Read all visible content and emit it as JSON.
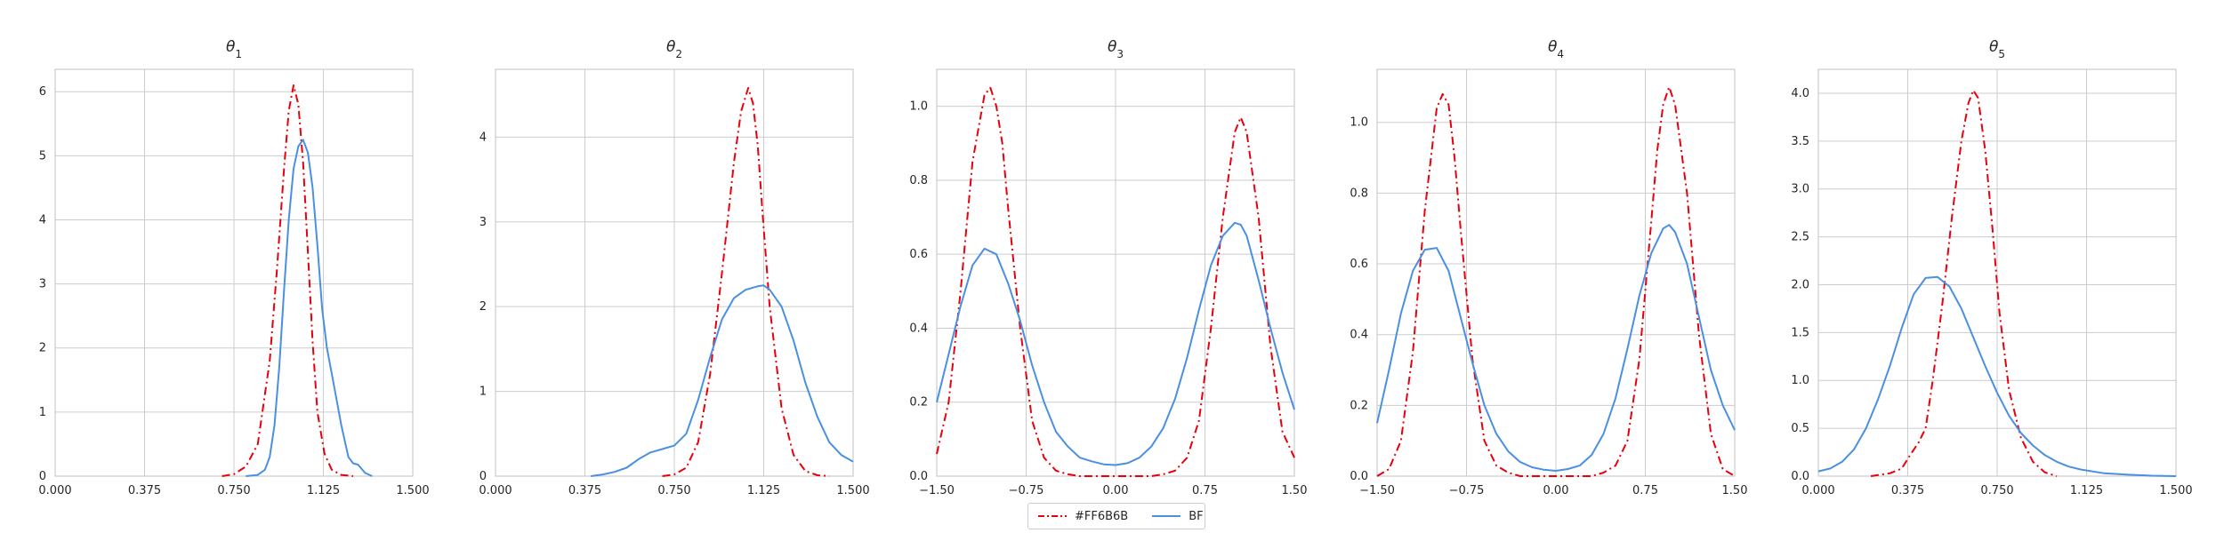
{
  "chart_data": [
    {
      "type": "line",
      "title": "θ1",
      "xlim": [
        0,
        1.5
      ],
      "ylim": [
        0,
        6.35
      ],
      "xticks": [
        "0.000",
        "0.375",
        "0.750",
        "1.125",
        "1.500"
      ],
      "yticks": [
        "0",
        "1",
        "2",
        "3",
        "4",
        "5",
        "6"
      ],
      "grid": true,
      "series": [
        {
          "name": "#FF6B6B",
          "x": [
            0.7,
            0.75,
            0.8,
            0.85,
            0.9,
            0.93,
            0.96,
            0.98,
            1.0,
            1.02,
            1.04,
            1.06,
            1.08,
            1.1,
            1.13,
            1.16,
            1.2,
            1.25
          ],
          "y": [
            0,
            0.03,
            0.15,
            0.5,
            1.8,
            3.2,
            4.8,
            5.7,
            6.1,
            5.8,
            4.9,
            3.5,
            2.1,
            1.0,
            0.35,
            0.1,
            0.02,
            0
          ]
        },
        {
          "name": "BF",
          "x": [
            0.8,
            0.85,
            0.88,
            0.9,
            0.92,
            0.94,
            0.96,
            0.98,
            1.0,
            1.02,
            1.04,
            1.06,
            1.08,
            1.1,
            1.12,
            1.14,
            1.17,
            1.2,
            1.23,
            1.25,
            1.27,
            1.3,
            1.33
          ],
          "y": [
            0,
            0.02,
            0.1,
            0.3,
            0.8,
            1.7,
            2.9,
            4.0,
            4.8,
            5.15,
            5.25,
            5.05,
            4.5,
            3.6,
            2.6,
            2.0,
            1.4,
            0.8,
            0.3,
            0.2,
            0.18,
            0.05,
            0
          ]
        }
      ]
    },
    {
      "type": "line",
      "title": "θ2",
      "xlim": [
        0,
        1.5
      ],
      "ylim": [
        0,
        4.8
      ],
      "xticks": [
        "0.000",
        "0.375",
        "0.750",
        "1.125",
        "1.500"
      ],
      "yticks": [
        "0",
        "1",
        "2",
        "3",
        "4"
      ],
      "grid": true,
      "series": [
        {
          "name": "#FF6B6B",
          "x": [
            0.7,
            0.75,
            0.8,
            0.85,
            0.9,
            0.95,
            1.0,
            1.03,
            1.06,
            1.08,
            1.1,
            1.12,
            1.15,
            1.2,
            1.25,
            1.3,
            1.35,
            1.4
          ],
          "y": [
            0,
            0.02,
            0.1,
            0.4,
            1.2,
            2.4,
            3.7,
            4.3,
            4.58,
            4.4,
            3.9,
            3.1,
            2.0,
            0.8,
            0.25,
            0.06,
            0.01,
            0
          ]
        },
        {
          "name": "BF",
          "x": [
            0.4,
            0.45,
            0.5,
            0.55,
            0.6,
            0.65,
            0.7,
            0.75,
            0.8,
            0.85,
            0.9,
            0.95,
            1.0,
            1.05,
            1.1,
            1.125,
            1.15,
            1.2,
            1.25,
            1.3,
            1.35,
            1.4,
            1.45,
            1.5
          ],
          "y": [
            0,
            0.02,
            0.05,
            0.1,
            0.2,
            0.28,
            0.32,
            0.36,
            0.5,
            0.9,
            1.4,
            1.85,
            2.1,
            2.2,
            2.24,
            2.25,
            2.2,
            2.0,
            1.6,
            1.1,
            0.7,
            0.4,
            0.25,
            0.17
          ]
        }
      ]
    },
    {
      "type": "line",
      "title": "θ3",
      "xlim": [
        -1.5,
        1.5
      ],
      "ylim": [
        0,
        1.1
      ],
      "xticks": [
        "−1.50",
        "−0.75",
        "0.00",
        "0.75",
        "1.50"
      ],
      "yticks": [
        "0.0",
        "0.2",
        "0.4",
        "0.6",
        "0.8",
        "1.0"
      ],
      "grid": true,
      "series": [
        {
          "name": "#FF6B6B",
          "x": [
            -1.5,
            -1.4,
            -1.3,
            -1.2,
            -1.1,
            -1.05,
            -1.0,
            -0.95,
            -0.9,
            -0.8,
            -0.7,
            -0.6,
            -0.5,
            -0.4,
            -0.3,
            0.0,
            0.3,
            0.4,
            0.5,
            0.6,
            0.7,
            0.8,
            0.9,
            1.0,
            1.05,
            1.1,
            1.2,
            1.3,
            1.4,
            1.5
          ],
          "y": [
            0.06,
            0.2,
            0.5,
            0.85,
            1.03,
            1.05,
            1.0,
            0.9,
            0.72,
            0.4,
            0.15,
            0.05,
            0.015,
            0.005,
            0,
            0,
            0,
            0.005,
            0.015,
            0.05,
            0.15,
            0.4,
            0.7,
            0.93,
            0.97,
            0.93,
            0.7,
            0.35,
            0.12,
            0.05
          ]
        },
        {
          "name": "BF",
          "x": [
            -1.5,
            -1.4,
            -1.3,
            -1.2,
            -1.1,
            -1.0,
            -0.9,
            -0.8,
            -0.7,
            -0.6,
            -0.5,
            -0.4,
            -0.3,
            -0.2,
            -0.1,
            0.0,
            0.1,
            0.2,
            0.3,
            0.4,
            0.5,
            0.6,
            0.7,
            0.8,
            0.9,
            1.0,
            1.05,
            1.1,
            1.2,
            1.3,
            1.4,
            1.5
          ],
          "y": [
            0.2,
            0.33,
            0.46,
            0.57,
            0.615,
            0.6,
            0.52,
            0.42,
            0.3,
            0.2,
            0.12,
            0.08,
            0.05,
            0.04,
            0.032,
            0.03,
            0.035,
            0.05,
            0.08,
            0.13,
            0.21,
            0.32,
            0.45,
            0.57,
            0.65,
            0.685,
            0.68,
            0.65,
            0.53,
            0.4,
            0.28,
            0.18
          ]
        }
      ]
    },
    {
      "type": "line",
      "title": "θ4",
      "xlim": [
        -1.5,
        1.5
      ],
      "ylim": [
        0,
        1.15
      ],
      "xticks": [
        "−1.50",
        "−0.75",
        "0.00",
        "0.75",
        "1.50"
      ],
      "yticks": [
        "0.0",
        "0.2",
        "0.4",
        "0.6",
        "0.8",
        "1.0"
      ],
      "grid": true,
      "series": [
        {
          "name": "#FF6B6B",
          "x": [
            -1.5,
            -1.4,
            -1.3,
            -1.2,
            -1.1,
            -1.0,
            -0.95,
            -0.9,
            -0.85,
            -0.8,
            -0.7,
            -0.6,
            -0.5,
            -0.4,
            -0.3,
            0.0,
            0.3,
            0.4,
            0.5,
            0.6,
            0.7,
            0.8,
            0.85,
            0.9,
            0.95,
            1.0,
            1.1,
            1.2,
            1.3,
            1.4,
            1.5
          ],
          "y": [
            0,
            0.02,
            0.1,
            0.35,
            0.75,
            1.04,
            1.08,
            1.05,
            0.9,
            0.7,
            0.33,
            0.1,
            0.03,
            0.01,
            0,
            0,
            0,
            0.01,
            0.03,
            0.1,
            0.33,
            0.72,
            0.92,
            1.05,
            1.1,
            1.05,
            0.8,
            0.4,
            0.12,
            0.02,
            0
          ]
        },
        {
          "name": "BF",
          "x": [
            -1.5,
            -1.4,
            -1.3,
            -1.2,
            -1.1,
            -1.0,
            -0.9,
            -0.8,
            -0.7,
            -0.6,
            -0.5,
            -0.4,
            -0.3,
            -0.2,
            -0.1,
            0.0,
            0.1,
            0.2,
            0.3,
            0.4,
            0.5,
            0.6,
            0.7,
            0.8,
            0.9,
            0.95,
            1.0,
            1.1,
            1.2,
            1.3,
            1.4,
            1.5
          ],
          "y": [
            0.15,
            0.3,
            0.46,
            0.58,
            0.64,
            0.645,
            0.58,
            0.45,
            0.32,
            0.2,
            0.12,
            0.07,
            0.04,
            0.025,
            0.018,
            0.015,
            0.02,
            0.03,
            0.06,
            0.12,
            0.22,
            0.36,
            0.51,
            0.63,
            0.7,
            0.71,
            0.69,
            0.6,
            0.45,
            0.3,
            0.2,
            0.13
          ]
        }
      ]
    },
    {
      "type": "line",
      "title": "θ5",
      "xlim": [
        0,
        1.5
      ],
      "ylim": [
        0,
        4.25
      ],
      "xticks": [
        "0.000",
        "0.375",
        "0.750",
        "1.125",
        "1.500"
      ],
      "yticks": [
        "0.0",
        "0.5",
        "1.0",
        "1.5",
        "2.0",
        "2.5",
        "3.0",
        "3.5",
        "4.0"
      ],
      "grid": true,
      "series": [
        {
          "name": "#FF6B6B",
          "x": [
            0.22,
            0.3,
            0.35,
            0.38,
            0.42,
            0.45,
            0.48,
            0.52,
            0.56,
            0.6,
            0.63,
            0.65,
            0.67,
            0.7,
            0.73,
            0.76,
            0.8,
            0.85,
            0.9,
            0.95,
            1.0
          ],
          "y": [
            0,
            0.03,
            0.08,
            0.2,
            0.35,
            0.5,
            1.0,
            1.8,
            2.7,
            3.5,
            3.9,
            4.03,
            3.95,
            3.4,
            2.6,
            1.7,
            0.9,
            0.4,
            0.15,
            0.04,
            0
          ]
        },
        {
          "name": "BF",
          "x": [
            0.0,
            0.05,
            0.1,
            0.15,
            0.2,
            0.25,
            0.3,
            0.35,
            0.4,
            0.45,
            0.5,
            0.55,
            0.6,
            0.65,
            0.7,
            0.75,
            0.8,
            0.85,
            0.9,
            0.95,
            1.0,
            1.05,
            1.1,
            1.2,
            1.3,
            1.4,
            1.5
          ],
          "y": [
            0.05,
            0.08,
            0.15,
            0.28,
            0.5,
            0.8,
            1.15,
            1.55,
            1.9,
            2.07,
            2.08,
            1.98,
            1.75,
            1.45,
            1.15,
            0.87,
            0.63,
            0.45,
            0.32,
            0.22,
            0.15,
            0.1,
            0.07,
            0.03,
            0.015,
            0.005,
            0
          ]
        }
      ]
    }
  ],
  "legend": {
    "placement": "bottom-center",
    "entries": [
      {
        "label": "#FF6B6B",
        "color": "#e8000b",
        "style": "dashdot"
      },
      {
        "label": "BF",
        "color": "#4a90e2",
        "style": "solid"
      }
    ]
  },
  "style": {
    "grid_color": "#cccccc",
    "axis_color": "#cccccc"
  }
}
